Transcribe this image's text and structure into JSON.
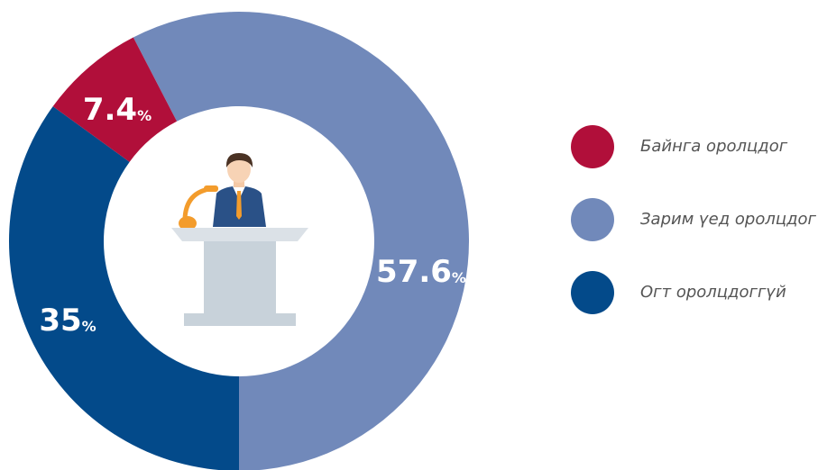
{
  "chart_data": {
    "type": "donut",
    "categories": [
      "Байнга оролцдог",
      "Зарим үед оролцдог",
      "Огт оролцдоггүй"
    ],
    "values": [
      7.4,
      57.6,
      35
    ],
    "value_labels": [
      "7.4%",
      "57.6%",
      "35%"
    ],
    "colors": [
      "#b10f3a",
      "#7189ba",
      "#034a8a"
    ]
  }
}
